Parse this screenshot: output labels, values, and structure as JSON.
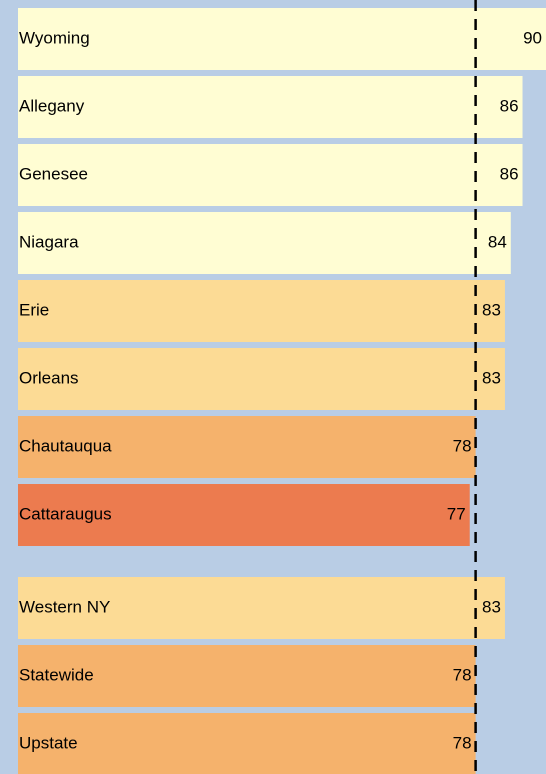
{
  "chart_data": {
    "type": "bar",
    "orientation": "horizontal",
    "categories": [
      "Wyoming",
      "Allegany",
      "Genesee",
      "Niagara",
      "Erie",
      "Orleans",
      "Chautauqua",
      "Cattaraugus",
      "Western NY",
      "Statewide",
      "Upstate"
    ],
    "values": [
      90,
      86,
      86,
      84,
      83,
      83,
      78,
      77,
      83,
      78,
      78
    ],
    "colors": [
      "#fffdd3",
      "#fffdd3",
      "#fffdd3",
      "#fffdd3",
      "#fcdb95",
      "#fcdb95",
      "#f5b26c",
      "#ec7b4f",
      "#fcdb95",
      "#f5b26c",
      "#f5b26c"
    ],
    "xlim": [
      0,
      90
    ],
    "reference_value": 78,
    "background": "#b9cde5"
  }
}
